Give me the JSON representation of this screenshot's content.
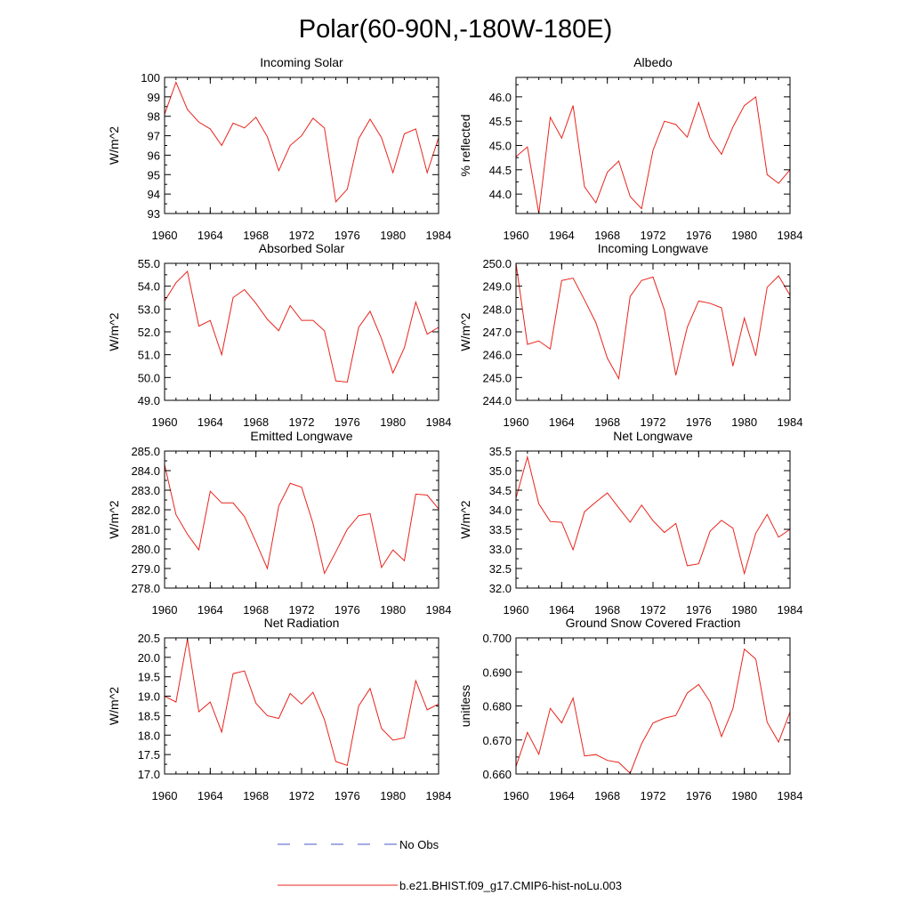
{
  "figure_title": "Polar(60-90N,-180W-180E)",
  "legend": {
    "placement": "bottom-center",
    "entries": [
      {
        "label": "No Obs",
        "color": "#4b55c8",
        "style": "dashed"
      },
      {
        "label": "b.e21.BHIST.f09_g17.CMIP6-hist-noLu.003",
        "color": "#e8241c",
        "style": "solid"
      }
    ]
  },
  "chart_data": [
    {
      "type": "line",
      "title": "Incoming Solar",
      "ylabel": "W/m^2",
      "xlim": [
        1960,
        1984
      ],
      "ylim": [
        93,
        100
      ],
      "xticks": [
        1960,
        1964,
        1968,
        1972,
        1976,
        1980,
        1984
      ],
      "yticks": [
        93,
        94,
        95,
        96,
        97,
        98,
        99,
        100
      ],
      "ytick_labels": [
        "93",
        "94",
        "95",
        "96",
        "97",
        "98",
        "99",
        "100"
      ],
      "series": [
        {
          "color": "#e8241c",
          "x": [
            1960,
            1961,
            1962,
            1963,
            1964,
            1965,
            1966,
            1967,
            1968,
            1969,
            1970,
            1971,
            1972,
            1973,
            1974,
            1975,
            1976,
            1977,
            1978,
            1979,
            1980,
            1981,
            1982,
            1983,
            1984
          ],
          "y": [
            98.1,
            99.75,
            98.35,
            97.7,
            97.35,
            96.5,
            97.65,
            97.4,
            97.95,
            96.95,
            95.2,
            96.5,
            97.0,
            97.9,
            97.4,
            93.6,
            94.25,
            96.85,
            97.85,
            96.9,
            95.1,
            97.1,
            97.35,
            95.1,
            96.9
          ]
        }
      ]
    },
    {
      "type": "line",
      "title": "Albedo",
      "ylabel": "% reflected",
      "xlim": [
        1960,
        1984
      ],
      "ylim": [
        43.6,
        46.4
      ],
      "xticks": [
        1960,
        1964,
        1968,
        1972,
        1976,
        1980,
        1984
      ],
      "yticks": [
        44.0,
        44.5,
        45.0,
        45.5,
        46.0
      ],
      "ytick_labels": [
        "44.0",
        "44.5",
        "45.0",
        "45.5",
        "46.0"
      ],
      "series": [
        {
          "color": "#e8241c",
          "x": [
            1960,
            1961,
            1962,
            1963,
            1964,
            1965,
            1966,
            1967,
            1968,
            1969,
            1970,
            1971,
            1972,
            1973,
            1974,
            1975,
            1976,
            1977,
            1978,
            1979,
            1980,
            1981,
            1982,
            1983,
            1984
          ],
          "y": [
            44.77,
            44.97,
            43.6,
            45.58,
            45.15,
            45.82,
            44.15,
            43.82,
            44.45,
            44.68,
            43.95,
            43.7,
            44.9,
            45.5,
            45.43,
            45.17,
            45.88,
            45.15,
            44.82,
            45.38,
            45.82,
            46.0,
            44.4,
            44.22,
            44.5
          ]
        }
      ]
    },
    {
      "type": "line",
      "title": "Absorbed Solar",
      "ylabel": "W/m^2",
      "xlim": [
        1960,
        1984
      ],
      "ylim": [
        49,
        55
      ],
      "xticks": [
        1960,
        1964,
        1968,
        1972,
        1976,
        1980,
        1984
      ],
      "yticks": [
        49,
        50,
        51,
        52,
        53,
        54,
        55
      ],
      "ytick_labels": [
        "49.0",
        "50.0",
        "51.0",
        "52.0",
        "53.0",
        "54.0",
        "55.0"
      ],
      "series": [
        {
          "color": "#e8241c",
          "x": [
            1960,
            1961,
            1962,
            1963,
            1964,
            1965,
            1966,
            1967,
            1968,
            1969,
            1970,
            1971,
            1972,
            1973,
            1974,
            1975,
            1976,
            1977,
            1978,
            1979,
            1980,
            1981,
            1982,
            1983,
            1984
          ],
          "y": [
            53.35,
            54.15,
            54.65,
            52.25,
            52.5,
            51.0,
            53.5,
            53.85,
            53.25,
            52.55,
            52.05,
            53.15,
            52.5,
            52.5,
            52.05,
            49.85,
            49.8,
            52.2,
            52.9,
            51.7,
            50.2,
            51.3,
            53.3,
            51.9,
            52.2
          ]
        }
      ]
    },
    {
      "type": "line",
      "title": "Incoming Longwave",
      "ylabel": "W/m^2",
      "xlim": [
        1960,
        1984
      ],
      "ylim": [
        244,
        250
      ],
      "xticks": [
        1960,
        1964,
        1968,
        1972,
        1976,
        1980,
        1984
      ],
      "yticks": [
        244,
        245,
        246,
        247,
        248,
        249,
        250
      ],
      "ytick_labels": [
        "244.0",
        "245.0",
        "246.0",
        "247.0",
        "248.0",
        "249.0",
        "250.0"
      ],
      "series": [
        {
          "color": "#e8241c",
          "x": [
            1960,
            1961,
            1962,
            1963,
            1964,
            1965,
            1966,
            1967,
            1968,
            1969,
            1970,
            1971,
            1972,
            1973,
            1974,
            1975,
            1976,
            1977,
            1978,
            1979,
            1980,
            1981,
            1982,
            1983,
            1984
          ],
          "y": [
            250.0,
            246.45,
            246.6,
            246.25,
            249.25,
            249.35,
            248.4,
            247.4,
            245.85,
            244.95,
            248.55,
            249.25,
            249.4,
            247.95,
            245.1,
            247.2,
            248.35,
            248.25,
            248.05,
            245.5,
            247.6,
            245.95,
            248.95,
            249.45,
            248.6
          ]
        }
      ]
    },
    {
      "type": "line",
      "title": "Emitted Longwave",
      "ylabel": "W/m^2",
      "xlim": [
        1960,
        1984
      ],
      "ylim": [
        278,
        285
      ],
      "xticks": [
        1960,
        1964,
        1968,
        1972,
        1976,
        1980,
        1984
      ],
      "yticks": [
        278,
        279,
        280,
        281,
        282,
        283,
        284,
        285
      ],
      "ytick_labels": [
        "278.0",
        "279.0",
        "280.0",
        "281.0",
        "282.0",
        "283.0",
        "284.0",
        "285.0"
      ],
      "series": [
        {
          "color": "#e8241c",
          "x": [
            1960,
            1961,
            1962,
            1963,
            1964,
            1965,
            1966,
            1967,
            1968,
            1969,
            1970,
            1971,
            1972,
            1973,
            1974,
            1975,
            1976,
            1977,
            1978,
            1979,
            1980,
            1981,
            1982,
            1983,
            1984
          ],
          "y": [
            284.3,
            281.75,
            280.75,
            279.95,
            282.95,
            282.35,
            282.35,
            281.65,
            280.35,
            279.0,
            282.2,
            283.35,
            283.15,
            281.3,
            278.75,
            279.85,
            281.0,
            281.7,
            281.8,
            279.05,
            279.95,
            279.4,
            282.8,
            282.75,
            282.05
          ]
        }
      ]
    },
    {
      "type": "line",
      "title": "Net Longwave",
      "ylabel": "W/m^2",
      "xlim": [
        1960,
        1984
      ],
      "ylim": [
        32,
        35.5
      ],
      "xticks": [
        1960,
        1964,
        1968,
        1972,
        1976,
        1980,
        1984
      ],
      "yticks": [
        32.0,
        32.5,
        33.0,
        33.5,
        34.0,
        34.5,
        35.0,
        35.5
      ],
      "ytick_labels": [
        "32.0",
        "32.5",
        "33.0",
        "33.5",
        "34.0",
        "34.5",
        "35.0",
        "35.5"
      ],
      "series": [
        {
          "color": "#e8241c",
          "x": [
            1960,
            1961,
            1962,
            1963,
            1964,
            1965,
            1966,
            1967,
            1968,
            1969,
            1970,
            1971,
            1972,
            1973,
            1974,
            1975,
            1976,
            1977,
            1978,
            1979,
            1980,
            1981,
            1982,
            1983,
            1984
          ],
          "y": [
            34.3,
            35.35,
            34.15,
            33.7,
            33.68,
            32.98,
            33.95,
            34.2,
            34.43,
            34.05,
            33.68,
            34.12,
            33.72,
            33.42,
            33.65,
            32.57,
            32.62,
            33.45,
            33.73,
            33.53,
            32.37,
            33.4,
            33.88,
            33.3,
            33.5
          ]
        }
      ]
    },
    {
      "type": "line",
      "title": "Net Radiation",
      "ylabel": "W/m^2",
      "xlim": [
        1960,
        1984
      ],
      "ylim": [
        17,
        20.5
      ],
      "xticks": [
        1960,
        1964,
        1968,
        1972,
        1976,
        1980,
        1984
      ],
      "yticks": [
        17.0,
        17.5,
        18.0,
        18.5,
        19.0,
        19.5,
        20.0,
        20.5
      ],
      "ytick_labels": [
        "17.0",
        "17.5",
        "18.0",
        "18.5",
        "19.0",
        "19.5",
        "20.0",
        "20.5"
      ],
      "series": [
        {
          "color": "#e8241c",
          "x": [
            1960,
            1961,
            1962,
            1963,
            1964,
            1965,
            1966,
            1967,
            1968,
            1969,
            1970,
            1971,
            1972,
            1973,
            1974,
            1975,
            1976,
            1977,
            1978,
            1979,
            1980,
            1981,
            1982,
            1983,
            1984
          ],
          "y": [
            19.0,
            18.85,
            20.47,
            18.6,
            18.85,
            18.08,
            19.58,
            19.65,
            18.82,
            18.5,
            18.43,
            19.07,
            18.8,
            19.1,
            18.4,
            17.32,
            17.22,
            18.75,
            19.2,
            18.17,
            17.87,
            17.93,
            19.4,
            18.65,
            18.8
          ]
        }
      ]
    },
    {
      "type": "line",
      "title": "Ground Snow Covered Fraction",
      "ylabel": "unitless",
      "xlim": [
        1960,
        1984
      ],
      "ylim": [
        0.66,
        0.7
      ],
      "xticks": [
        1960,
        1964,
        1968,
        1972,
        1976,
        1980,
        1984
      ],
      "yticks": [
        0.66,
        0.67,
        0.68,
        0.69,
        0.7
      ],
      "ytick_labels": [
        "0.660",
        "0.670",
        "0.680",
        "0.690",
        "0.700"
      ],
      "series": [
        {
          "color": "#e8241c",
          "x": [
            1960,
            1961,
            1962,
            1963,
            1964,
            1965,
            1966,
            1967,
            1968,
            1969,
            1970,
            1971,
            1972,
            1973,
            1974,
            1975,
            1976,
            1977,
            1978,
            1979,
            1980,
            1981,
            1982,
            1983,
            1984
          ],
          "y": [
            0.6622,
            0.6722,
            0.6658,
            0.6793,
            0.675,
            0.6823,
            0.6653,
            0.6657,
            0.664,
            0.6634,
            0.6602,
            0.6689,
            0.675,
            0.6764,
            0.6772,
            0.6838,
            0.6863,
            0.6812,
            0.671,
            0.6792,
            0.6967,
            0.6938,
            0.6752,
            0.6694,
            0.6782
          ]
        }
      ]
    }
  ]
}
